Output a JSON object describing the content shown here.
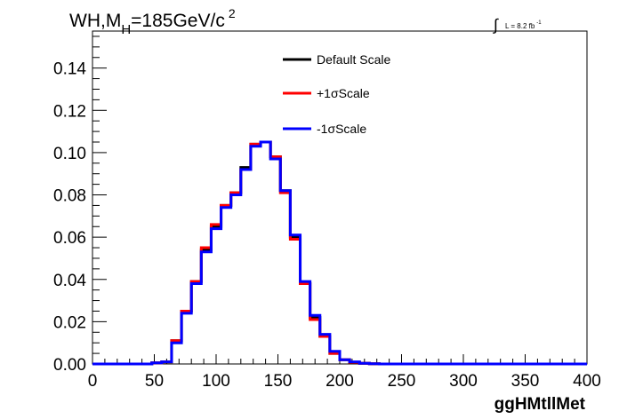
{
  "chart_data": {
    "type": "line",
    "title_main": "WH,M",
    "title_sub": "H",
    "title_rest": "=185GeV/c",
    "title_sup": "2",
    "lumi_label": "L = 8.2 fb",
    "lumi_sup": "-1",
    "xlabel": "ggHMtllMet",
    "ylabel": "",
    "xlim": [
      0,
      400
    ],
    "ylim": [
      0,
      0.1575
    ],
    "x_ticks": [
      0,
      50,
      100,
      150,
      200,
      250,
      300,
      350,
      400
    ],
    "x_tick_labels": [
      "0",
      "50",
      "100",
      "150",
      "200",
      "250",
      "300",
      "350",
      "400"
    ],
    "y_ticks": [
      0,
      0.02,
      0.04,
      0.06,
      0.08,
      0.1,
      0.12,
      0.14
    ],
    "y_tick_labels": [
      "0.00",
      "0.02",
      "0.04",
      "0.06",
      "0.08",
      "0.10",
      "0.12",
      "0.14"
    ],
    "bin_edges": [
      0,
      8,
      16,
      24,
      32,
      40,
      48,
      56,
      64,
      72,
      80,
      88,
      96,
      104,
      112,
      120,
      128,
      136,
      144,
      152,
      160,
      168,
      176,
      184,
      192,
      200,
      208,
      216,
      224,
      232,
      240,
      248,
      256,
      264,
      272,
      280,
      288,
      296,
      304,
      312,
      320,
      328,
      336,
      344,
      352,
      360,
      368,
      376,
      384,
      392,
      400
    ],
    "series": [
      {
        "name": "Default Scale",
        "color": "#000000",
        "values": [
          0,
          0,
          0,
          0,
          0,
          0,
          0.0005,
          0.001,
          0.011,
          0.025,
          0.039,
          0.054,
          0.065,
          0.075,
          0.081,
          0.093,
          0.104,
          0.105,
          0.098,
          0.082,
          0.06,
          0.038,
          0.022,
          0.013,
          0.005,
          0.002,
          0.0008,
          0.0003,
          0.0001,
          0,
          0,
          0,
          0,
          0,
          0,
          0,
          0,
          0,
          0,
          0,
          0,
          0,
          0,
          0,
          0,
          0,
          0,
          0,
          0,
          0
        ]
      },
      {
        "name": "+1σScale",
        "color": "#ff0000",
        "values": [
          0,
          0,
          0,
          0,
          0,
          0,
          0.0005,
          0.001,
          0.011,
          0.025,
          0.039,
          0.055,
          0.066,
          0.075,
          0.081,
          0.092,
          0.104,
          0.105,
          0.098,
          0.081,
          0.059,
          0.038,
          0.021,
          0.013,
          0.005,
          0.002,
          0.0008,
          0.0003,
          0.0001,
          0,
          0,
          0,
          0,
          0,
          0,
          0,
          0,
          0,
          0,
          0,
          0,
          0,
          0,
          0,
          0,
          0,
          0,
          0,
          0,
          0
        ]
      },
      {
        "name": "-1σScale",
        "color": "#0000ff",
        "values": [
          0,
          0,
          0,
          0,
          0,
          0,
          0.0005,
          0.001,
          0.01,
          0.024,
          0.038,
          0.053,
          0.064,
          0.074,
          0.08,
          0.092,
          0.103,
          0.105,
          0.097,
          0.082,
          0.061,
          0.039,
          0.023,
          0.014,
          0.006,
          0.002,
          0.001,
          0.0003,
          0.0001,
          0,
          0,
          0,
          0,
          0,
          0,
          0,
          0,
          0,
          0,
          0,
          0,
          0,
          0,
          0,
          0,
          0,
          0,
          0,
          0,
          0
        ]
      }
    ],
    "legend_position": "top-right",
    "grid": false
  }
}
